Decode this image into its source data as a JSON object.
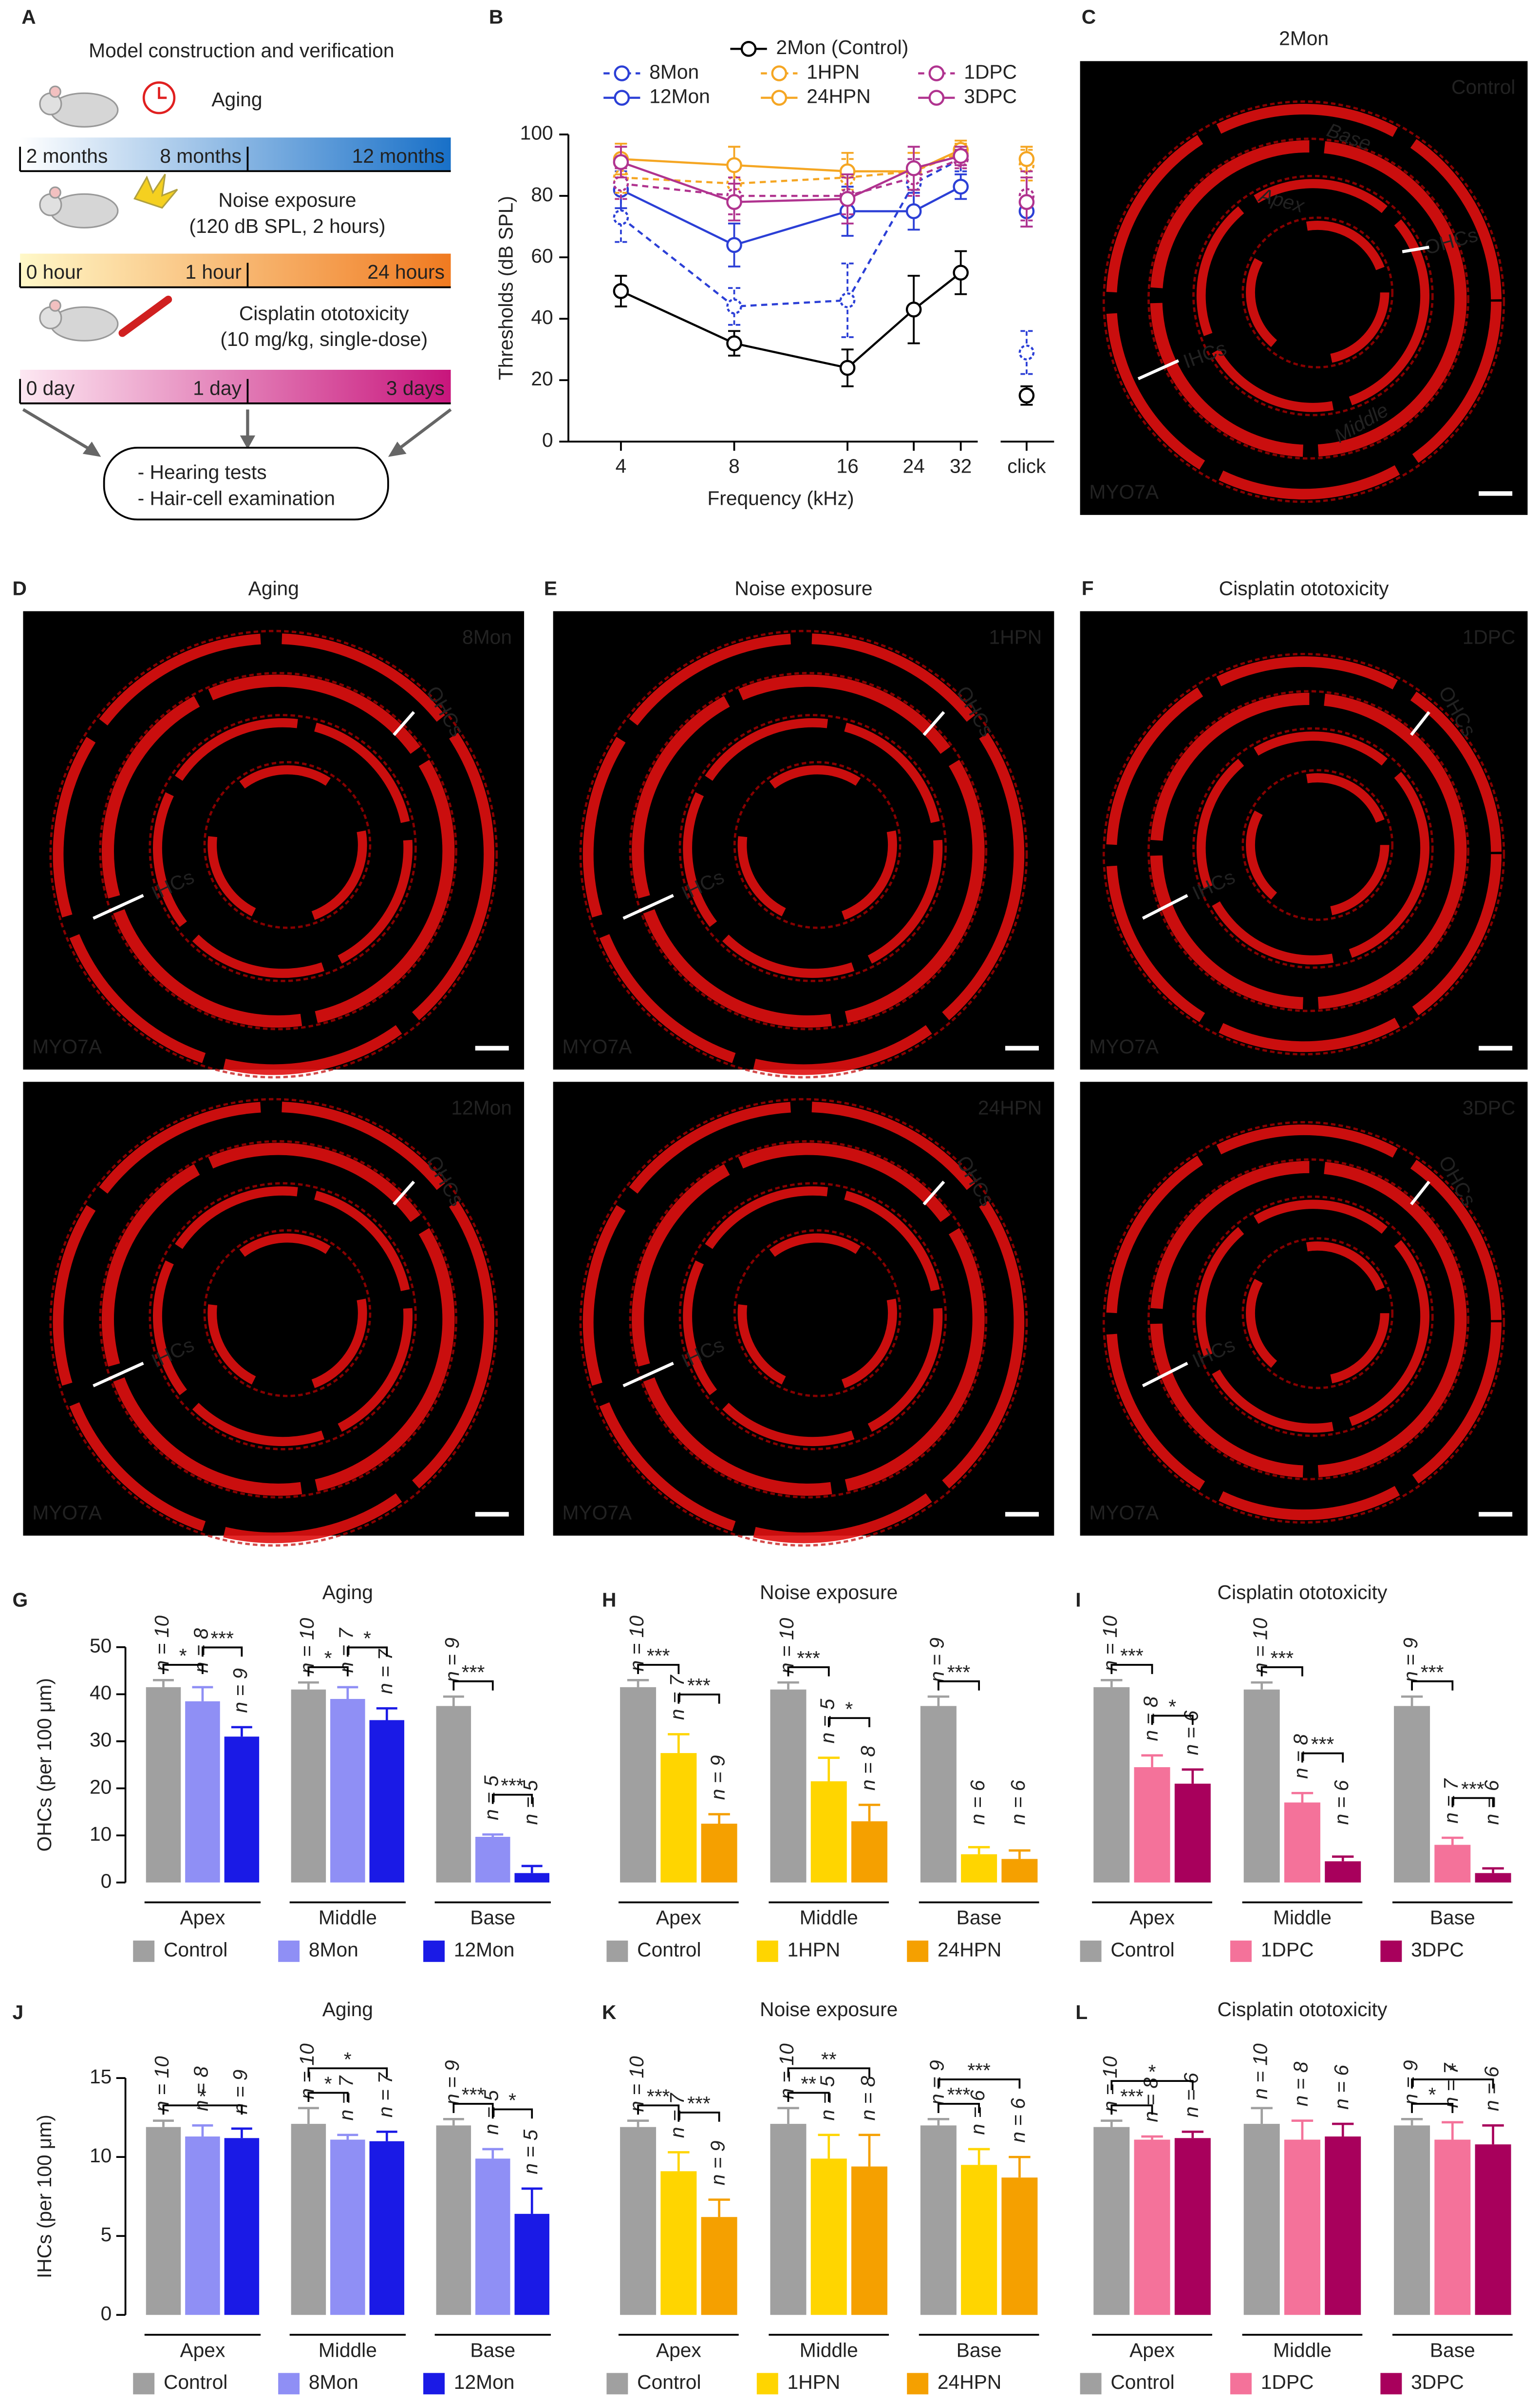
{
  "letters": [
    "A",
    "B",
    "C",
    "D",
    "E",
    "F",
    "G",
    "H",
    "I",
    "J",
    "K",
    "L"
  ],
  "diagram": {
    "title": "Model construction and verification",
    "steps": [
      {
        "name": "Aging",
        "ticks": [
          "2 months",
          "8 months",
          "12 months"
        ]
      },
      {
        "name": "Noise exposure",
        "detail": "(120 dB SPL, 2 hours)",
        "ticks": [
          "0 hour",
          "1 hour",
          "24 hours"
        ]
      },
      {
        "name": "Cisplatin ototoxicity",
        "detail": "(10 mg/kg, single-dose)",
        "ticks": [
          "0 day",
          "1 day",
          "3 days"
        ]
      }
    ],
    "outcomes": [
      "- Hearing tests",
      "- Hair-cell examination"
    ]
  },
  "images": [
    {
      "title": "2Mon",
      "label": "Control",
      "stain": "MYO7A",
      "annotations": [
        "Base",
        "Apex",
        "OHCs",
        "IHCs",
        "Middle"
      ]
    },
    {
      "title": "Aging",
      "label": "8Mon",
      "stain": "MYO7A",
      "annotations": [
        "OHCs",
        "IHCs"
      ]
    },
    {
      "label": "12Mon",
      "stain": "MYO7A",
      "annotations": [
        "OHCs",
        "IHCs"
      ]
    },
    {
      "title": "Noise exposure",
      "label": "1HPN",
      "stain": "MYO7A",
      "annotations": [
        "OHCs",
        "IHCs"
      ]
    },
    {
      "label": "24HPN",
      "stain": "MYO7A",
      "annotations": [
        "OHCs",
        "IHCs"
      ]
    },
    {
      "title": "Cisplatin ototoxicity",
      "label": "1DPC",
      "stain": "MYO7A",
      "annotations": [
        "OHCs",
        "IHCs"
      ]
    },
    {
      "label": "3DPC",
      "stain": "MYO7A",
      "annotations": [
        "OHCs",
        "IHCs"
      ]
    }
  ],
  "chart_data": [
    {
      "type": "line",
      "ylabel": "Thresholds (dB SPL)",
      "xlabel": "Frequency (kHz)",
      "x": [
        4,
        8,
        16,
        24,
        32
      ],
      "xscale": "log",
      "xlim": [
        2.9,
        35.5
      ],
      "xticks": [
        4,
        8,
        16,
        24,
        32
      ],
      "ylim": [
        0,
        100
      ],
      "yticks": [
        0,
        20,
        40,
        60,
        80,
        100
      ],
      "click_label": "click",
      "series": [
        {
          "name": "2Mon (Control)",
          "color": "#000000",
          "dash": false,
          "values": [
            49,
            32,
            24,
            43,
            55
          ],
          "errors": [
            5,
            4,
            6,
            11,
            7
          ],
          "click": 15,
          "click_error": 3
        },
        {
          "name": "8Mon",
          "color": "#2b3fd6",
          "dash": true,
          "values": [
            73,
            44,
            46,
            84,
            92
          ],
          "errors": [
            8,
            6,
            12,
            8,
            4
          ],
          "click": 29,
          "click_error": 7
        },
        {
          "name": "12Mon",
          "color": "#2b3fd6",
          "dash": false,
          "values": [
            82,
            64,
            75,
            75,
            83
          ],
          "errors": [
            6,
            7,
            8,
            6,
            4
          ],
          "click": 75,
          "click_error": 5
        },
        {
          "name": "1HPN",
          "color": "#f5a623",
          "dash": true,
          "values": [
            86,
            84,
            86,
            88,
            94
          ],
          "errors": [
            5,
            5,
            6,
            6,
            3
          ],
          "click": 90,
          "click_error": 5
        },
        {
          "name": "24HPN",
          "color": "#f5a623",
          "dash": false,
          "values": [
            92,
            90,
            88,
            88,
            95
          ],
          "errors": [
            5,
            6,
            6,
            6,
            3
          ],
          "click": 92,
          "click_error": 4
        },
        {
          "name": "1DPC",
          "color": "#b0338f",
          "dash": true,
          "values": [
            84,
            80,
            80,
            86,
            92
          ],
          "errors": [
            5,
            6,
            6,
            6,
            3
          ],
          "click": 80,
          "click_error": 8
        },
        {
          "name": "3DPC",
          "color": "#b0338f",
          "dash": false,
          "values": [
            91,
            78,
            79,
            89,
            93
          ],
          "errors": [
            5,
            6,
            8,
            7,
            3
          ],
          "click": 78,
          "click_error": 8
        }
      ]
    },
    {
      "type": "bar",
      "title": "Aging",
      "ylabel": "OHCs (per 100 μm)",
      "categories": [
        "Apex",
        "Middle",
        "Base"
      ],
      "ylim": [
        0,
        50
      ],
      "yticks": [
        0,
        10,
        20,
        30,
        40,
        50
      ],
      "series": [
        {
          "name": "Control",
          "color": "#a0a0a0",
          "values": [
            41.5,
            41,
            37.5
          ],
          "errors": [
            1.5,
            1.5,
            2
          ],
          "n_labels": [
            "n = 10",
            "n = 10",
            "n = 9"
          ]
        },
        {
          "name": "8Mon",
          "color": "#8f8ff5",
          "values": [
            38.5,
            39,
            9.7
          ],
          "errors": [
            3,
            2.5,
            0.5
          ],
          "n_labels": [
            "n = 8",
            "n = 7",
            "n = 5"
          ]
        },
        {
          "name": "12Mon",
          "color": "#1a1ae6",
          "values": [
            31,
            34.5,
            2
          ],
          "errors": [
            2,
            2.5,
            1.5
          ],
          "n_labels": [
            "n = 9",
            "n = 7",
            "n = 5"
          ]
        }
      ],
      "brackets": [
        {
          "category": 0,
          "pair": [
            0,
            1
          ],
          "label": "*"
        },
        {
          "category": 0,
          "pair": [
            1,
            2
          ],
          "label": "***"
        },
        {
          "category": 1,
          "pair": [
            0,
            1
          ],
          "label": "*"
        },
        {
          "category": 1,
          "pair": [
            1,
            2
          ],
          "label": "*"
        },
        {
          "category": 2,
          "pair": [
            0,
            1
          ],
          "label": "***"
        },
        {
          "category": 2,
          "pair": [
            1,
            2
          ],
          "label": "***"
        }
      ]
    },
    {
      "type": "bar",
      "title": "Noise exposure",
      "categories": [
        "Apex",
        "Middle",
        "Base"
      ],
      "ylim": [
        0,
        50
      ],
      "series": [
        {
          "name": "Control",
          "color": "#a0a0a0",
          "values": [
            41.5,
            41,
            37.5
          ],
          "errors": [
            1.5,
            1.5,
            2
          ],
          "n_labels": [
            "n = 10",
            "n = 10",
            "n = 9"
          ]
        },
        {
          "name": "1HPN",
          "color": "#ffd500",
          "values": [
            27.5,
            21.5,
            6
          ],
          "errors": [
            4,
            5,
            1.5
          ],
          "n_labels": [
            "n = 7",
            "n = 5",
            "n = 6"
          ]
        },
        {
          "name": "24HPN",
          "color": "#f5a000",
          "values": [
            12.5,
            13,
            5
          ],
          "errors": [
            2,
            3.5,
            1.8
          ],
          "n_labels": [
            "n = 9",
            "n = 8",
            "n = 6"
          ]
        }
      ],
      "brackets": [
        {
          "category": 0,
          "pair": [
            0,
            1
          ],
          "label": "***"
        },
        {
          "category": 0,
          "pair": [
            1,
            2
          ],
          "label": "***"
        },
        {
          "category": 1,
          "pair": [
            0,
            1
          ],
          "label": "***"
        },
        {
          "category": 1,
          "pair": [
            1,
            2
          ],
          "label": "*"
        },
        {
          "category": 2,
          "pair": [
            0,
            1
          ],
          "label": "***"
        }
      ]
    },
    {
      "type": "bar",
      "title": "Cisplatin ototoxicity",
      "categories": [
        "Apex",
        "Middle",
        "Base"
      ],
      "ylim": [
        0,
        50
      ],
      "series": [
        {
          "name": "Control",
          "color": "#a0a0a0",
          "values": [
            41.5,
            41,
            37.5
          ],
          "errors": [
            1.5,
            1.5,
            2
          ],
          "n_labels": [
            "n = 10",
            "n = 10",
            "n = 9"
          ]
        },
        {
          "name": "1DPC",
          "color": "#f4729a",
          "values": [
            24.5,
            17,
            8
          ],
          "errors": [
            2.5,
            2,
            1.5
          ],
          "n_labels": [
            "n = 8",
            "n = 8",
            "n = 7"
          ]
        },
        {
          "name": "3DPC",
          "color": "#a8005c",
          "values": [
            21,
            4.5,
            2
          ],
          "errors": [
            3,
            1,
            1
          ],
          "n_labels": [
            "n = 6",
            "n = 6",
            "n = 6"
          ]
        }
      ],
      "brackets": [
        {
          "category": 0,
          "pair": [
            0,
            1
          ],
          "label": "***"
        },
        {
          "category": 0,
          "pair": [
            1,
            2
          ],
          "label": "*"
        },
        {
          "category": 1,
          "pair": [
            0,
            1
          ],
          "label": "***"
        },
        {
          "category": 1,
          "pair": [
            1,
            2
          ],
          "label": "***"
        },
        {
          "category": 2,
          "pair": [
            0,
            1
          ],
          "label": "***"
        },
        {
          "category": 2,
          "pair": [
            1,
            2
          ],
          "label": "***"
        }
      ]
    },
    {
      "type": "bar",
      "title": "Aging",
      "ylabel": "IHCs (per 100 μm)",
      "categories": [
        "Apex",
        "Middle",
        "Base"
      ],
      "ylim": [
        0,
        15
      ],
      "yticks": [
        0,
        5,
        10,
        15
      ],
      "series": [
        {
          "name": "Control",
          "color": "#a0a0a0",
          "values": [
            11.9,
            12.1,
            12
          ],
          "errors": [
            0.4,
            1,
            0.4
          ],
          "n_labels": [
            "n = 10",
            "n = 10",
            "n = 9"
          ]
        },
        {
          "name": "8Mon",
          "color": "#8f8ff5",
          "values": [
            11.3,
            11.1,
            9.9
          ],
          "errors": [
            0.7,
            0.3,
            0.6
          ],
          "n_labels": [
            "n = 8",
            "n = 7",
            "n = 5"
          ]
        },
        {
          "name": "12Mon",
          "color": "#1a1ae6",
          "values": [
            11.2,
            11,
            6.4
          ],
          "errors": [
            0.6,
            0.6,
            1.6
          ],
          "n_labels": [
            "n = 9",
            "n = 7",
            "n = 5"
          ]
        }
      ],
      "brackets": [
        {
          "category": 0,
          "pair": [
            0,
            2
          ],
          "label": "*"
        },
        {
          "category": 1,
          "pair": [
            0,
            1
          ],
          "label": "*"
        },
        {
          "category": 1,
          "pair": [
            0,
            2
          ],
          "label": "*"
        },
        {
          "category": 2,
          "pair": [
            0,
            1
          ],
          "label": "***"
        },
        {
          "category": 2,
          "pair": [
            1,
            2
          ],
          "label": "*"
        }
      ]
    },
    {
      "type": "bar",
      "title": "Noise exposure",
      "categories": [
        "Apex",
        "Middle",
        "Base"
      ],
      "ylim": [
        0,
        15
      ],
      "series": [
        {
          "name": "Control",
          "color": "#a0a0a0",
          "values": [
            11.9,
            12.1,
            12
          ],
          "errors": [
            0.4,
            1,
            0.4
          ],
          "n_labels": [
            "n = 10",
            "n = 10",
            "n = 9"
          ]
        },
        {
          "name": "1HPN",
          "color": "#ffd500",
          "values": [
            9.1,
            9.9,
            9.5
          ],
          "errors": [
            1.2,
            1.5,
            1
          ],
          "n_labels": [
            "n = 7",
            "n = 5",
            "n = 6"
          ]
        },
        {
          "name": "24HPN",
          "color": "#f5a000",
          "values": [
            6.2,
            9.4,
            8.7
          ],
          "errors": [
            1.1,
            2,
            1.3
          ],
          "n_labels": [
            "n = 9",
            "n = 8",
            "n = 6"
          ]
        }
      ],
      "brackets": [
        {
          "category": 0,
          "pair": [
            0,
            1
          ],
          "label": "***"
        },
        {
          "category": 0,
          "pair": [
            1,
            2
          ],
          "label": "***"
        },
        {
          "category": 1,
          "pair": [
            0,
            1
          ],
          "label": "**"
        },
        {
          "category": 1,
          "pair": [
            0,
            2
          ],
          "label": "**"
        },
        {
          "category": 2,
          "pair": [
            0,
            1
          ],
          "label": "***"
        },
        {
          "category": 2,
          "pair": [
            0,
            2
          ],
          "label": "***"
        }
      ]
    },
    {
      "type": "bar",
      "title": "Cisplatin ototoxicity",
      "categories": [
        "Apex",
        "Middle",
        "Base"
      ],
      "ylim": [
        0,
        15
      ],
      "series": [
        {
          "name": "Control",
          "color": "#a0a0a0",
          "values": [
            11.9,
            12.1,
            12
          ],
          "errors": [
            0.4,
            1,
            0.4
          ],
          "n_labels": [
            "n = 10",
            "n = 10",
            "n = 9"
          ]
        },
        {
          "name": "1DPC",
          "color": "#f4729a",
          "values": [
            11.1,
            11.1,
            11.1
          ],
          "errors": [
            0.2,
            1.2,
            1.1
          ],
          "n_labels": [
            "n = 8",
            "n = 8",
            "n = 7"
          ]
        },
        {
          "name": "3DPC",
          "color": "#a8005c",
          "values": [
            11.2,
            11.3,
            10.8
          ],
          "errors": [
            0.4,
            0.8,
            1.2
          ],
          "n_labels": [
            "n = 6",
            "n = 6",
            "n = 6"
          ]
        }
      ],
      "brackets": [
        {
          "category": 0,
          "pair": [
            0,
            1
          ],
          "label": "***"
        },
        {
          "category": 0,
          "pair": [
            0,
            2
          ],
          "label": "*"
        },
        {
          "category": 2,
          "pair": [
            0,
            1
          ],
          "label": "*"
        },
        {
          "category": 2,
          "pair": [
            0,
            2
          ],
          "label": "*"
        }
      ]
    }
  ]
}
